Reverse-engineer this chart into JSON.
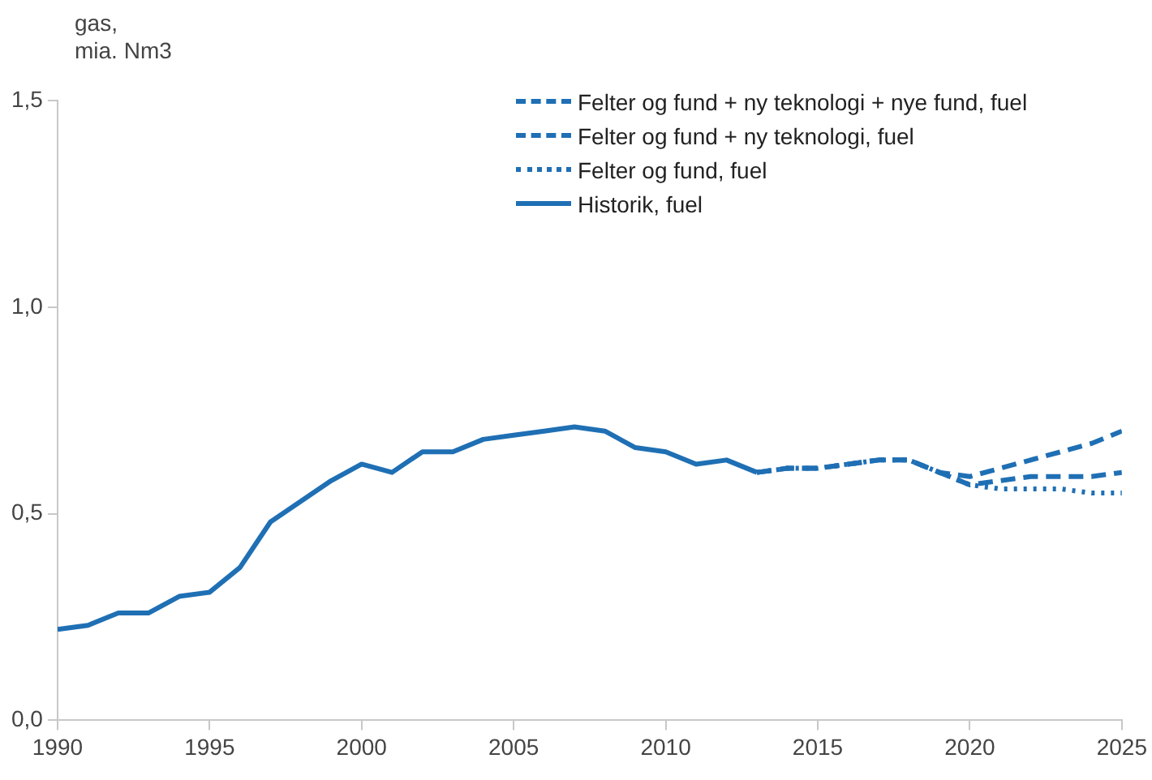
{
  "chart_data": {
    "type": "line",
    "ylabel": "gas,\nmia. Nm3",
    "xlim": [
      1990,
      2025
    ],
    "xticks": [
      1990,
      1995,
      2000,
      2005,
      2010,
      2015,
      2020,
      2025
    ],
    "ylim": [
      0,
      1.5
    ],
    "yticks": [
      {
        "value": 0,
        "label": "0,0"
      },
      {
        "value": 0.5,
        "label": "0,5"
      },
      {
        "value": 1,
        "label": "1,0"
      },
      {
        "value": 1.5,
        "label": "1,5"
      }
    ],
    "grid": false,
    "legend": "top right",
    "marker": "none",
    "series": [
      {
        "name": "Felter og fund + ny teknologi + nye fund, fuel",
        "color": "#1f6fb4",
        "line_style": "dashed",
        "x": [
          2013,
          2014,
          2015,
          2016,
          2017,
          2018,
          2019,
          2020,
          2021,
          2022,
          2023,
          2024,
          2025
        ],
        "values": [
          0.6,
          0.61,
          0.61,
          0.62,
          0.63,
          0.63,
          0.6,
          0.59,
          0.61,
          0.63,
          0.65,
          0.67,
          0.7
        ]
      },
      {
        "name": "Felter og fund + ny teknologi, fuel",
        "color": "#1f6fb4",
        "line_style": "dashed",
        "x": [
          2013,
          2014,
          2015,
          2016,
          2017,
          2018,
          2019,
          2020,
          2021,
          2022,
          2023,
          2024,
          2025
        ],
        "values": [
          0.6,
          0.61,
          0.61,
          0.62,
          0.63,
          0.63,
          0.6,
          0.57,
          0.58,
          0.59,
          0.59,
          0.59,
          0.6
        ]
      },
      {
        "name": "Felter og fund, fuel",
        "color": "#1f6fb4",
        "line_style": "dotted",
        "x": [
          2013,
          2014,
          2015,
          2016,
          2017,
          2018,
          2019,
          2020,
          2021,
          2022,
          2023,
          2024,
          2025
        ],
        "values": [
          0.6,
          0.61,
          0.61,
          0.62,
          0.63,
          0.63,
          0.6,
          0.57,
          0.56,
          0.56,
          0.56,
          0.55,
          0.55
        ]
      },
      {
        "name": "Historik, fuel",
        "color": "#1f6fb4",
        "line_style": "solid",
        "x": [
          1990,
          1991,
          1992,
          1993,
          1994,
          1995,
          1996,
          1997,
          1998,
          1999,
          2000,
          2001,
          2002,
          2003,
          2004,
          2005,
          2006,
          2007,
          2008,
          2009,
          2010,
          2011,
          2012,
          2013
        ],
        "values": [
          0.22,
          0.23,
          0.26,
          0.26,
          0.3,
          0.31,
          0.37,
          0.48,
          0.53,
          0.58,
          0.62,
          0.6,
          0.65,
          0.65,
          0.68,
          0.69,
          0.7,
          0.71,
          0.7,
          0.66,
          0.65,
          0.62,
          0.63,
          0.6
        ]
      }
    ]
  }
}
